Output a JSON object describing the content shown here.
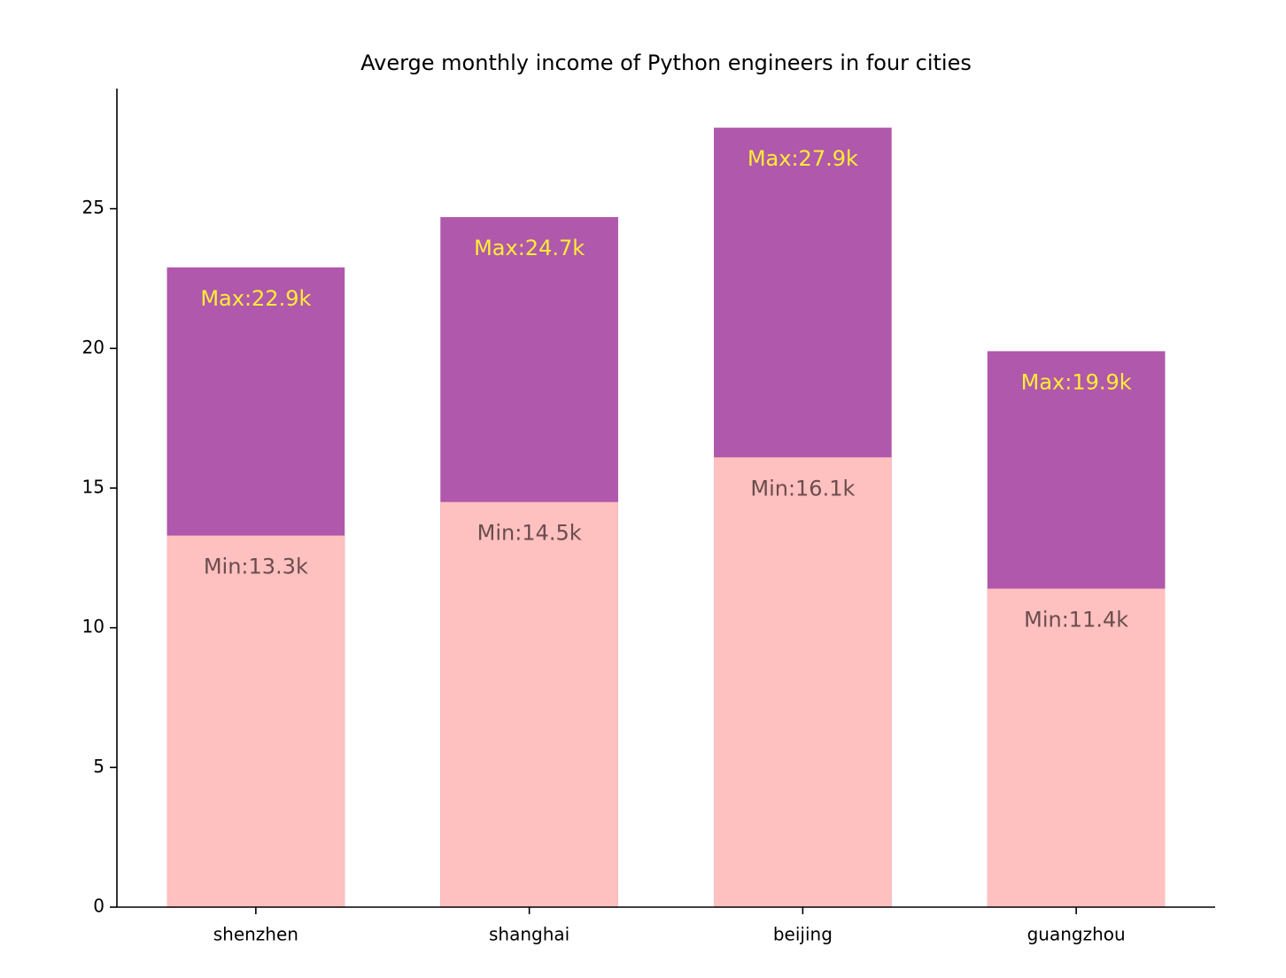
{
  "chart_data": {
    "type": "overlay-bar",
    "title": "Averge monthly income of Python engineers in four cities",
    "categories": [
      "shenzhen",
      "shanghai",
      "beijing",
      "guangzhou"
    ],
    "series": [
      {
        "color": "#b058ab",
        "label_color": "#ffee33",
        "values": [
          22.9,
          24.7,
          27.9,
          19.9
        ],
        "value_labels": [
          "Max:22.9k",
          "Max:24.7k",
          "Max:27.9k",
          "Max:19.9k"
        ]
      },
      {
        "color": "#ffc0c0",
        "label_color": "#6b4d4d",
        "values": [
          13.3,
          14.5,
          16.1,
          11.4
        ],
        "value_labels": [
          "Min:13.3k",
          "Min:14.5k",
          "Min:16.1k",
          "Min:11.4k"
        ]
      }
    ],
    "ylim": [
      0,
      29.3
    ],
    "yticks": [
      0,
      5,
      10,
      15,
      20,
      25
    ],
    "grid": false
  }
}
